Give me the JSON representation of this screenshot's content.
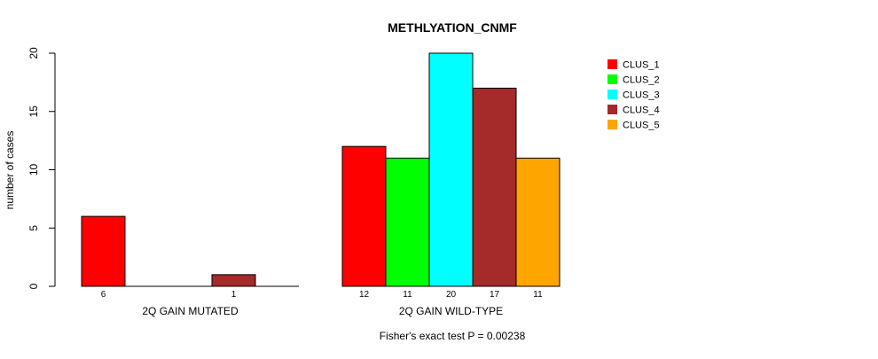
{
  "chart_data": {
    "type": "bar",
    "title": "METHLYATION_CNMF",
    "ylabel": "number of cases",
    "ylim": [
      0,
      20
    ],
    "yticks": [
      0,
      5,
      10,
      15,
      20
    ],
    "groups": [
      {
        "label": "2Q GAIN MUTATED",
        "values": [
          6,
          0,
          0,
          1,
          0
        ],
        "count_labels": [
          "6",
          "",
          "",
          "1",
          ""
        ]
      },
      {
        "label": "2Q GAIN WILD-TYPE",
        "values": [
          12,
          11,
          20,
          17,
          11
        ],
        "count_labels": [
          "12",
          "11",
          "20",
          "17",
          "11"
        ]
      }
    ],
    "series": [
      {
        "name": "CLUS_1",
        "color": "#ff0000"
      },
      {
        "name": "CLUS_2",
        "color": "#00ff00"
      },
      {
        "name": "CLUS_3",
        "color": "#00ffff"
      },
      {
        "name": "CLUS_4",
        "color": "#a52a2a"
      },
      {
        "name": "CLUS_5",
        "color": "#ffa500"
      }
    ],
    "legend_position": "top-right",
    "footnote": "Fisher's exact test P = 0.00238"
  }
}
